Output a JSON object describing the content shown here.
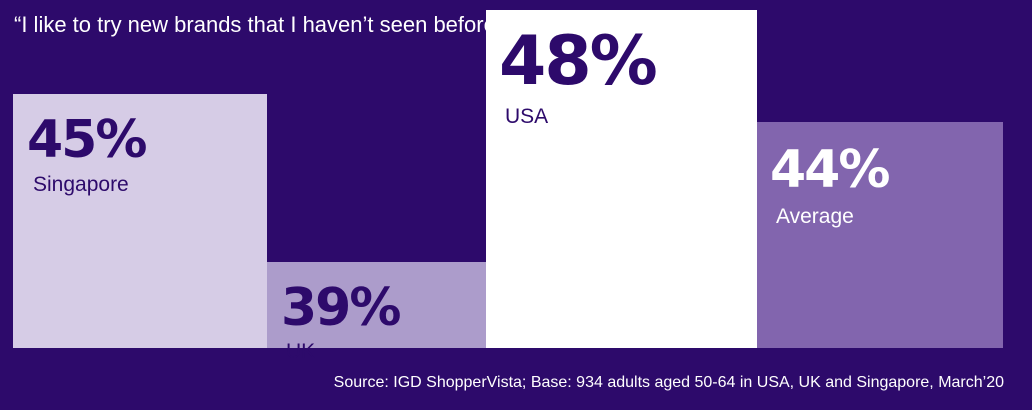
{
  "title": "“I like to try new brands that I haven’t seen before”",
  "source": "Source: IGD ShopperVista; Base: 934 adults aged 50-64 in USA, UK and Singapore, March’20",
  "colors": {
    "background": "#2d0a6b",
    "singapore": "#d6cce6",
    "uk": "#ac9ccb",
    "usa": "#ffffff",
    "average": "#8265ae",
    "dark_text": "#2d0a6b",
    "light_text": "#ffffff"
  },
  "chart_data": {
    "type": "bar",
    "title": "“I like to try new brands that I haven’t seen before”",
    "categories": [
      "Singapore",
      "UK",
      "USA",
      "Average"
    ],
    "values": [
      45,
      39,
      48,
      44
    ],
    "value_labels": [
      "45%",
      "39%",
      "48%",
      "44%"
    ],
    "unit": "%"
  }
}
